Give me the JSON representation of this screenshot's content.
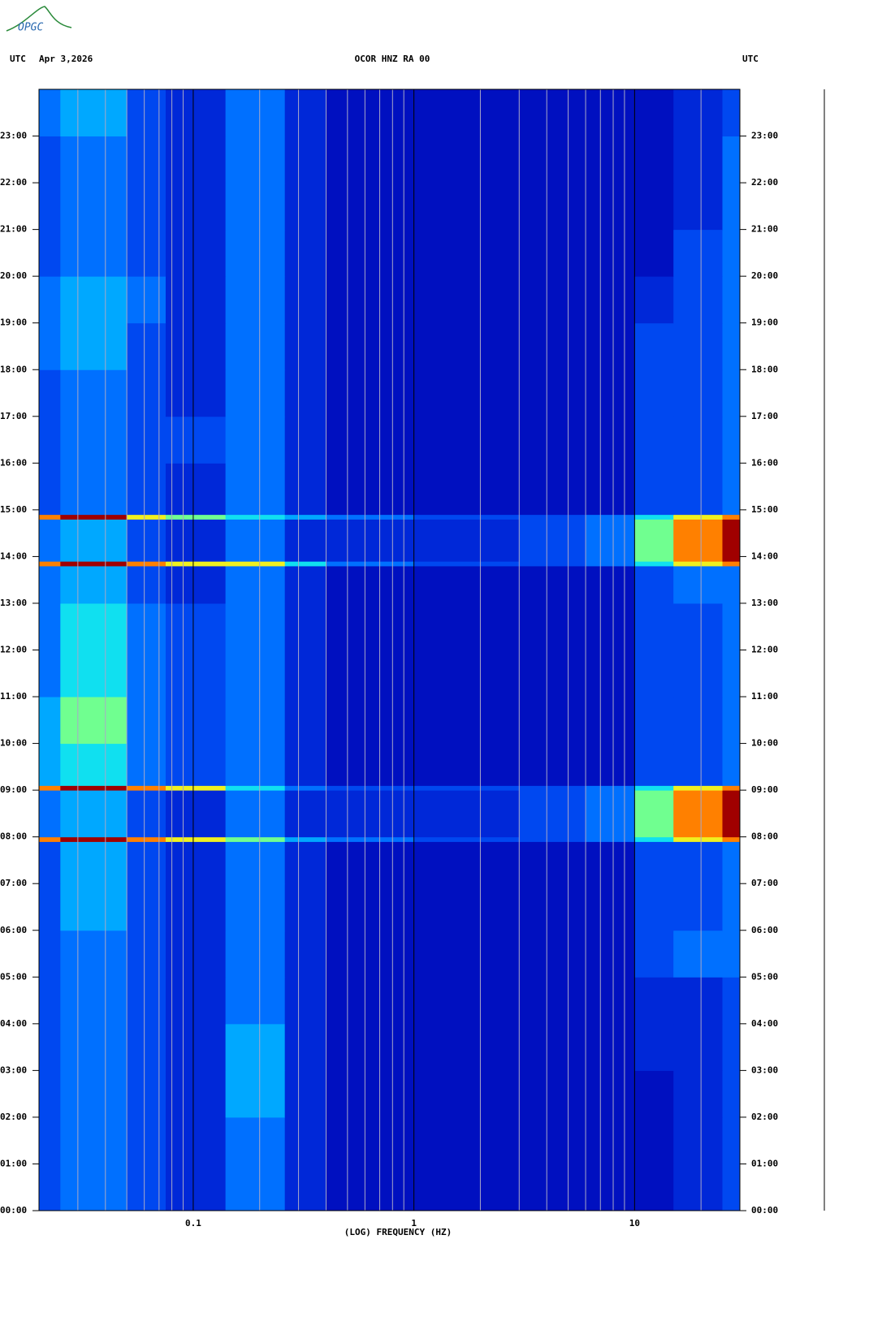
{
  "chart_data": {
    "type": "heatmap",
    "logo": "OPGC",
    "title": "OCOR HNZ RA 00",
    "date": "Apr 3,2026",
    "time_zone": "UTC",
    "xlabel": "(LOG) FREQUENCY (HZ)",
    "xscale": "log",
    "xlim": [
      0.02,
      30
    ],
    "xticks": [
      0.1,
      1,
      10
    ],
    "xgrid_minor": [
      0.03,
      0.04,
      0.05,
      0.06,
      0.07,
      0.08,
      0.09,
      0.2,
      0.3,
      0.4,
      0.5,
      0.6,
      0.7,
      0.8,
      0.9,
      2,
      3,
      4,
      5,
      6,
      7,
      8,
      9,
      20
    ],
    "ylim": [
      0,
      24
    ],
    "yticks": [
      {
        "value": 0,
        "label": "00:00"
      },
      {
        "value": 1,
        "label": "01:00"
      },
      {
        "value": 2,
        "label": "02:00"
      },
      {
        "value": 3,
        "label": "03:00"
      },
      {
        "value": 4,
        "label": "04:00"
      },
      {
        "value": 5,
        "label": "05:00"
      },
      {
        "value": 6,
        "label": "06:00"
      },
      {
        "value": 7,
        "label": "07:00"
      },
      {
        "value": 8,
        "label": "08:00"
      },
      {
        "value": 9,
        "label": "09:00"
      },
      {
        "value": 10,
        "label": "10:00"
      },
      {
        "value": 11,
        "label": "11:00"
      },
      {
        "value": 12,
        "label": "12:00"
      },
      {
        "value": 13,
        "label": "13:00"
      },
      {
        "value": 14,
        "label": "14:00"
      },
      {
        "value": 15,
        "label": "15:00"
      },
      {
        "value": 16,
        "label": "16:00"
      },
      {
        "value": 17,
        "label": "17:00"
      },
      {
        "value": 18,
        "label": "18:00"
      },
      {
        "value": 19,
        "label": "19:00"
      },
      {
        "value": 20,
        "label": "20:00"
      },
      {
        "value": 21,
        "label": "21:00"
      },
      {
        "value": 22,
        "label": "22:00"
      },
      {
        "value": 23,
        "label": "23:00"
      }
    ],
    "xedges": [
      0.02,
      0.025,
      0.05,
      0.075,
      0.14,
      0.26,
      0.4,
      1,
      3,
      6,
      10,
      15,
      25,
      30
    ],
    "yedges": [
      0,
      1,
      2,
      3,
      4,
      5,
      6,
      7,
      7.9,
      8,
      9,
      9.1,
      10,
      11,
      12,
      13,
      13.8,
      13.9,
      14.8,
      14.9,
      16,
      17,
      18,
      19,
      20,
      21,
      22,
      23,
      24
    ],
    "zlim": [
      0,
      10
    ],
    "colormap": [
      "#00009a",
      "#0010c0",
      "#0028d8",
      "#0048f0",
      "#0070ff",
      "#00a8ff",
      "#10e0f0",
      "#70ff90",
      "#f0f020",
      "#ff8000",
      "#a00000"
    ],
    "z": [
      [
        3,
        4,
        3,
        2,
        4,
        2,
        1,
        1,
        1,
        1,
        1,
        2,
        3
      ],
      [
        3,
        4,
        3,
        2,
        4,
        2,
        1,
        1,
        1,
        1,
        1,
        2,
        3
      ],
      [
        3,
        4,
        3,
        2,
        5,
        2,
        1,
        1,
        1,
        1,
        1,
        2,
        3
      ],
      [
        3,
        4,
        3,
        2,
        5,
        2,
        1,
        1,
        1,
        1,
        2,
        2,
        3
      ],
      [
        3,
        4,
        3,
        2,
        4,
        2,
        1,
        1,
        1,
        1,
        2,
        2,
        3
      ],
      [
        3,
        4,
        3,
        2,
        4,
        2,
        1,
        1,
        1,
        1,
        3,
        4,
        4
      ],
      [
        3,
        5,
        3,
        2,
        4,
        2,
        1,
        1,
        1,
        1,
        3,
        3,
        4
      ],
      [
        3,
        5,
        3,
        2,
        4,
        2,
        1,
        1,
        1,
        1,
        3,
        3,
        4
      ],
      [
        9,
        10,
        9,
        8,
        7,
        5,
        4,
        3,
        3,
        4,
        6,
        8,
        9
      ],
      [
        4,
        5,
        3,
        2,
        4,
        2,
        2,
        2,
        3,
        4,
        7,
        9,
        10
      ],
      [
        9,
        10,
        9,
        8,
        6,
        4,
        3,
        3,
        3,
        4,
        6,
        8,
        9
      ],
      [
        5,
        6,
        4,
        3,
        4,
        2,
        1,
        1,
        1,
        1,
        3,
        3,
        4
      ],
      [
        5,
        7,
        4,
        3,
        4,
        2,
        1,
        1,
        1,
        1,
        3,
        3,
        4
      ],
      [
        4,
        6,
        4,
        3,
        4,
        2,
        1,
        1,
        1,
        1,
        3,
        3,
        4
      ],
      [
        4,
        6,
        4,
        3,
        4,
        2,
        1,
        1,
        1,
        1,
        3,
        3,
        4
      ],
      [
        4,
        5,
        3,
        2,
        4,
        2,
        1,
        1,
        1,
        1,
        3,
        4,
        4
      ],
      [
        9,
        10,
        9,
        8,
        8,
        6,
        4,
        3,
        3,
        4,
        6,
        8,
        9
      ],
      [
        4,
        5,
        3,
        2,
        4,
        2,
        2,
        2,
        3,
        4,
        7,
        9,
        10
      ],
      [
        9,
        10,
        8,
        7,
        6,
        5,
        4,
        3,
        3,
        4,
        6,
        8,
        9
      ],
      [
        3,
        4,
        3,
        2,
        4,
        2,
        1,
        1,
        1,
        1,
        3,
        3,
        4
      ],
      [
        3,
        4,
        3,
        3,
        4,
        2,
        1,
        1,
        1,
        1,
        3,
        3,
        4
      ],
      [
        3,
        4,
        3,
        2,
        4,
        2,
        1,
        1,
        1,
        1,
        3,
        3,
        4
      ],
      [
        4,
        5,
        3,
        2,
        4,
        2,
        1,
        1,
        1,
        1,
        3,
        3,
        4
      ],
      [
        4,
        5,
        4,
        2,
        4,
        2,
        1,
        1,
        1,
        1,
        2,
        3,
        4
      ],
      [
        3,
        4,
        3,
        2,
        4,
        2,
        1,
        1,
        1,
        1,
        1,
        3,
        4
      ],
      [
        3,
        4,
        3,
        2,
        4,
        2,
        1,
        1,
        1,
        1,
        1,
        2,
        4
      ],
      [
        3,
        4,
        3,
        2,
        4,
        2,
        1,
        1,
        1,
        1,
        1,
        2,
        4
      ],
      [
        4,
        5,
        3,
        2,
        4,
        2,
        1,
        1,
        1,
        1,
        1,
        2,
        3
      ]
    ]
  }
}
